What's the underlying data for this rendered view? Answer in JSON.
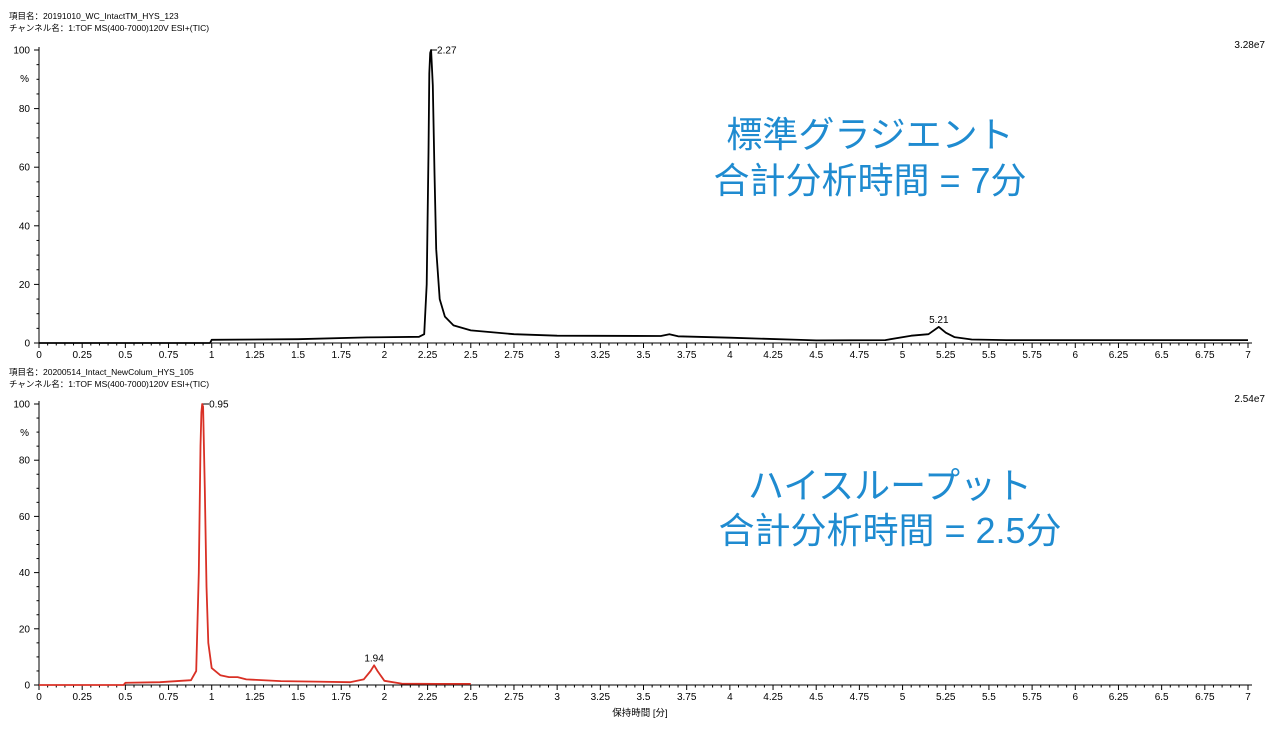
{
  "chart_data": [
    {
      "type": "line",
      "item_name": "項目名：20191010_WC_IntactTM_HYS_123",
      "channel_name": "チャンネル名：1:TOF MS(400-7000)120V ESI+(TIC)",
      "ylabel": "%",
      "intensity_max": "3.28e7",
      "xlim": [
        0,
        7
      ],
      "ylim": [
        0,
        100
      ],
      "x_ticks": [
        "0",
        "0.25",
        "0.5",
        "0.75",
        "1",
        "1.25",
        "1.5",
        "1.75",
        "2",
        "2.25",
        "2.5",
        "2.75",
        "3",
        "3.25",
        "3.5",
        "3.75",
        "4",
        "4.25",
        "4.5",
        "4.75",
        "5",
        "5.25",
        "5.5",
        "5.75",
        "6",
        "6.25",
        "6.5",
        "6.75",
        "7"
      ],
      "y_ticks": [
        "0",
        "20",
        "40",
        "60",
        "80",
        "100"
      ],
      "color": "#000000",
      "annotation_lines": [
        "標準グラジエント",
        "合計分析時間 = 7分"
      ],
      "peaks": [
        {
          "label": "2.27",
          "x": 2.27,
          "y": 100
        },
        {
          "label": "5.21",
          "x": 5.21,
          "y": 5.5
        }
      ],
      "series": [
        {
          "x": [
            0,
            0.99,
            1.0,
            1.5,
            1.9,
            2.2,
            2.23,
            2.245,
            2.255,
            2.26,
            2.265,
            2.27,
            2.28,
            2.29,
            2.3,
            2.32,
            2.35,
            2.4,
            2.5,
            2.75,
            3.0,
            3.6,
            3.65,
            3.7,
            4.0,
            4.5,
            4.9,
            5.05,
            5.15,
            5.21,
            5.25,
            5.3,
            5.4,
            5.6,
            6.0,
            7.0
          ],
          "y": [
            0,
            0,
            1.1,
            1.3,
            1.9,
            2.1,
            3.0,
            20,
            65,
            92,
            99,
            100,
            88,
            58,
            32,
            15,
            9,
            6,
            4.3,
            3.0,
            2.5,
            2.4,
            3.0,
            2.3,
            1.8,
            0.9,
            1.0,
            2.5,
            3.0,
            5.5,
            3.5,
            2.0,
            1.2,
            1.0,
            1.0,
            1.0
          ]
        }
      ]
    },
    {
      "type": "line",
      "item_name": "項目名：20200514_Intact_NewColum_HYS_105",
      "channel_name": "チャンネル名：1:TOF MS(400-7000)120V ESI+(TIC)",
      "ylabel": "%",
      "xlabel": "保持時間 [分]",
      "intensity_max": "2.54e7",
      "xlim": [
        0,
        7
      ],
      "ylim": [
        0,
        100
      ],
      "x_ticks": [
        "0",
        "0.25",
        "0.5",
        "0.75",
        "1",
        "1.25",
        "1.5",
        "1.75",
        "2",
        "2.25",
        "2.5",
        "2.75",
        "3",
        "3.25",
        "3.5",
        "3.75",
        "4",
        "4.25",
        "4.5",
        "4.75",
        "5",
        "5.25",
        "5.5",
        "5.75",
        "6",
        "6.25",
        "6.5",
        "6.75",
        "7"
      ],
      "y_ticks": [
        "0",
        "20",
        "40",
        "60",
        "80",
        "100"
      ],
      "color": "#d93025",
      "annotation_lines": [
        "ハイスループット",
        "合計分析時間 = 2.5分"
      ],
      "peaks": [
        {
          "label": "0.95",
          "x": 0.95,
          "y": 100
        },
        {
          "label": "1.94",
          "x": 1.94,
          "y": 7
        }
      ],
      "series": [
        {
          "x": [
            0,
            0.49,
            0.5,
            0.7,
            0.88,
            0.91,
            0.925,
            0.935,
            0.94,
            0.945,
            0.95,
            0.96,
            0.97,
            0.98,
            1.0,
            1.05,
            1.1,
            1.15,
            1.2,
            1.4,
            1.6,
            1.8,
            1.88,
            1.92,
            1.94,
            1.96,
            2.0,
            2.1,
            2.3,
            2.5
          ],
          "y": [
            0,
            0,
            0.8,
            1.0,
            1.7,
            5,
            40,
            85,
            97,
            100,
            99,
            70,
            35,
            15,
            6,
            3.5,
            2.8,
            2.8,
            2.0,
            1.4,
            1.2,
            1.0,
            2.0,
            5,
            7,
            5,
            1.5,
            0.5,
            0.4,
            0.4
          ]
        }
      ]
    }
  ]
}
